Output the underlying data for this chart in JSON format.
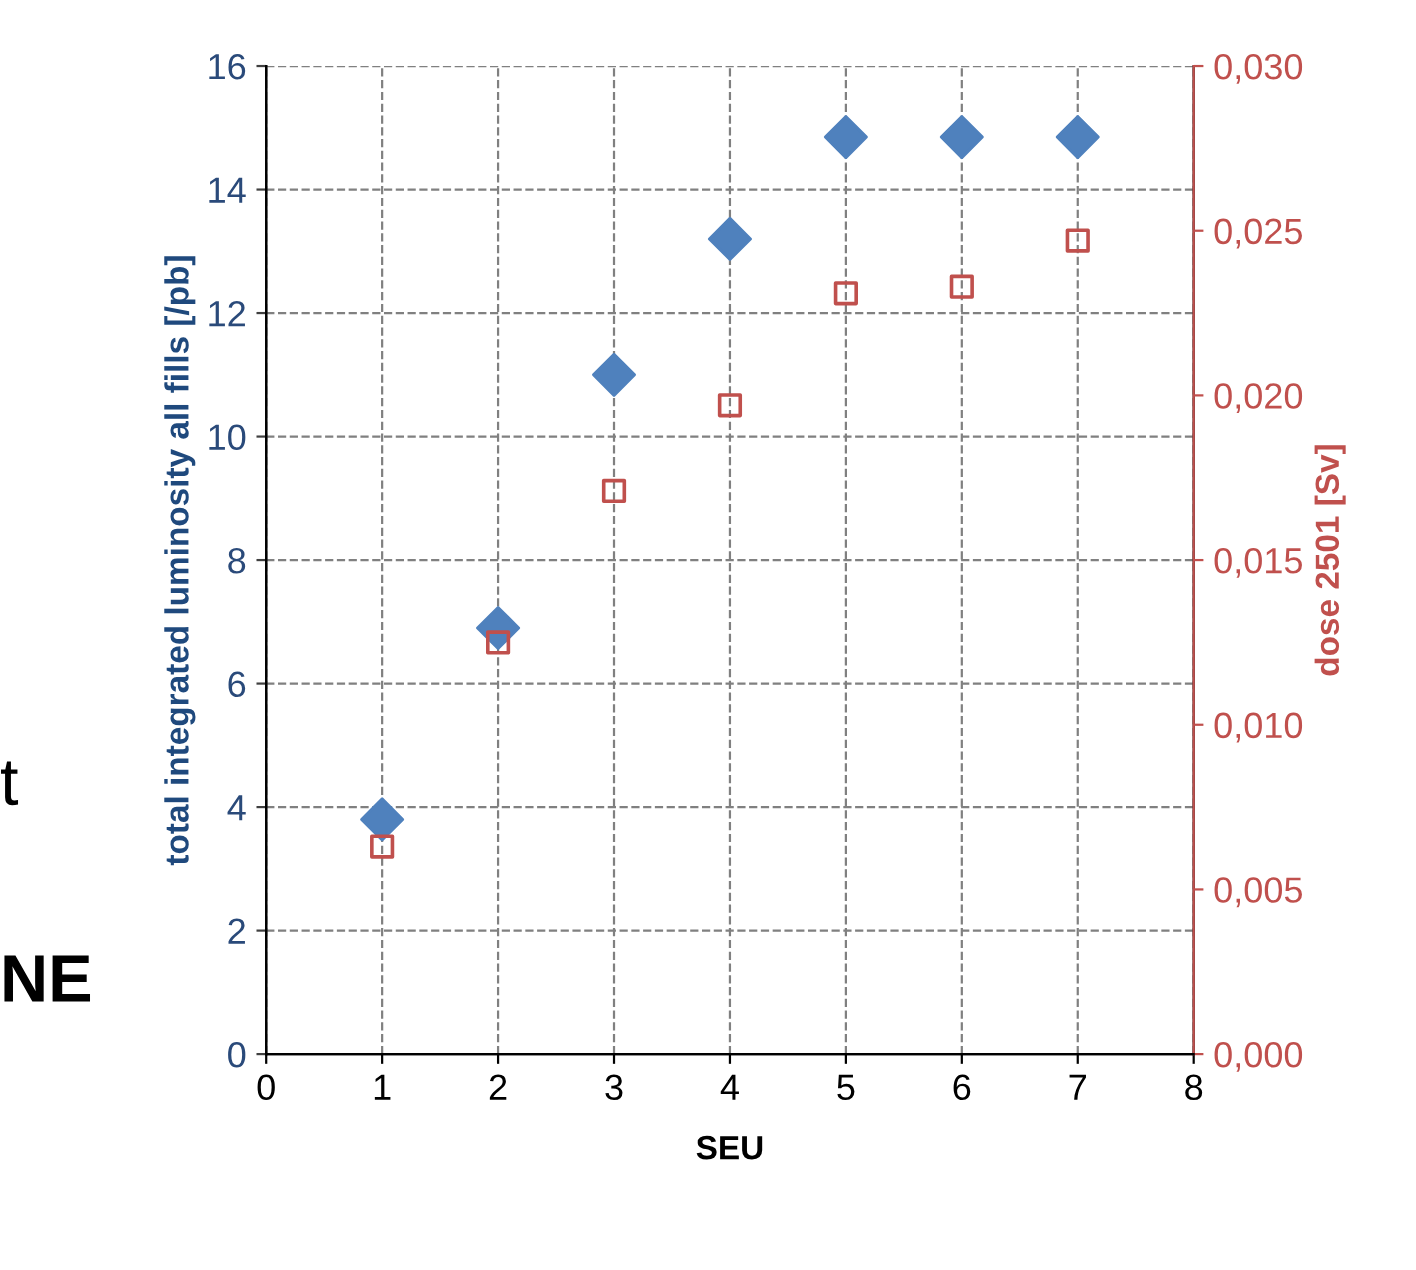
{
  "chart_data": {
    "type": "scatter",
    "xlabel": "SEU",
    "ylabel": "total integrated luminosity all fills [/pb]",
    "y2label": "dose 2501 [Sv]",
    "annotations": [
      "t",
      "NE"
    ],
    "x": [
      1,
      2,
      3,
      4,
      5,
      6,
      7
    ],
    "series": [
      {
        "color": "#4f81bd",
        "marker": "diamond",
        "values": [
          3.8,
          6.9,
          11.0,
          13.2,
          14.85,
          14.85,
          14.85
        ]
      },
      {
        "color": "#c0504d",
        "marker": "square",
        "axis": "y2",
        "values": [
          0.0063,
          0.0125,
          0.0171,
          0.0197,
          0.0231,
          0.0233,
          0.0247
        ]
      }
    ],
    "xlim": [
      0,
      8
    ],
    "xticks": [
      0,
      1,
      2,
      3,
      4,
      5,
      6,
      7,
      8
    ],
    "ylim": [
      0,
      16
    ],
    "yticks": [
      0,
      2,
      4,
      6,
      8,
      10,
      12,
      14,
      16
    ],
    "y2lim": [
      0,
      0.03
    ],
    "y2ticks": [
      {
        "value": 0,
        "label": "0,000"
      },
      {
        "value": 0.005,
        "label": "0,005"
      },
      {
        "value": 0.01,
        "label": "0,010"
      },
      {
        "value": 0.015,
        "label": "0,015"
      },
      {
        "value": 0.02,
        "label": "0,020"
      },
      {
        "value": 0.025,
        "label": "0,025"
      },
      {
        "value": 0.03,
        "label": "0,030"
      }
    ],
    "grid": true,
    "line_style": "dashed",
    "legend": false
  }
}
